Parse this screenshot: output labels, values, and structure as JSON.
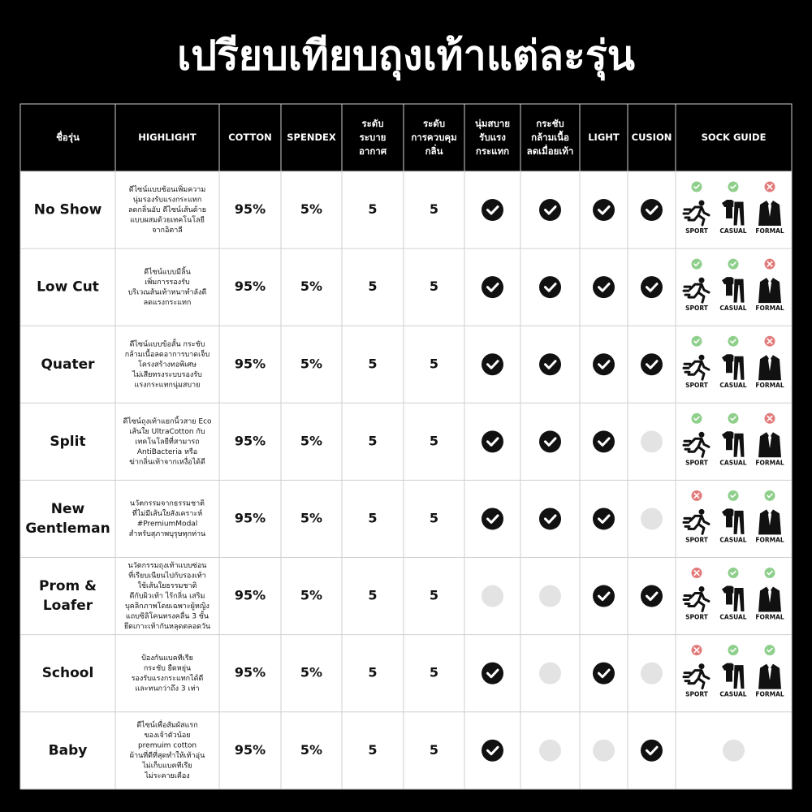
{
  "title": "เปรียบเทียบถุงเท้าแต่ละรุ่น",
  "header": {
    "columns": [
      [
        "ชื่อรุ่น"
      ],
      [
        "HIGHLIGHT"
      ],
      [
        "COTTON"
      ],
      [
        "SPENDEX"
      ],
      [
        "ระดับ",
        "ระบาย",
        "อากาศ"
      ],
      [
        "ระดับ",
        "การควบคุม",
        "กลิ่น"
      ],
      [
        "นุ่มสบาย",
        "รับแรง",
        "กระแทก"
      ],
      [
        "กระชับ",
        "กล้ามเนื้อ",
        "ลดเมื่อยเท้า"
      ],
      [
        "LIGHT"
      ],
      [
        "CUSION"
      ],
      [
        "SOCK GUIDE"
      ]
    ]
  },
  "guide_labels": [
    "SPORT",
    "CASUAL",
    "FORMAL"
  ],
  "rows": [
    {
      "name": [
        "No Show"
      ],
      "highlight": [
        "ดีไซน์แบบซ้อนเพิ่มความ",
        "นุ่มรองรับแรงกระแทก",
        "ลดกลิ่นอับ ดีไซน์เส้นด้าย",
        "แบบผสมด้วยเทคโนโลยี",
        "จากอิตาลี"
      ],
      "cotton": "95%",
      "spendex": "5%",
      "ventilation": 5,
      "odor": 5,
      "features": [
        true,
        true,
        true,
        true
      ],
      "guide": [
        true,
        true,
        false
      ]
    },
    {
      "name": [
        "Low Cut"
      ],
      "highlight": [
        "ดีไซน์แบบมีลิ้น",
        "เพิ่มการรองรับ",
        "บริเวณส้นเท้าหนาทำลังดี",
        "ลดแรงกระแทก"
      ],
      "cotton": "95%",
      "spendex": "5%",
      "ventilation": 5,
      "odor": 5,
      "features": [
        true,
        true,
        true,
        true
      ],
      "guide": [
        true,
        true,
        false
      ]
    },
    {
      "name": [
        "Quater"
      ],
      "highlight": [
        "ดีไซน์แบบข้อสั้น กระชับ",
        "กล้ามเนื้อลดอาการบาดเจ็บ",
        "โครงสร้างทอพิเศษ",
        "ไม่เสียทรงระบบรองรับ",
        "แรงกระแทกนุ่มสบาย"
      ],
      "cotton": "95%",
      "spendex": "5%",
      "ventilation": 5,
      "odor": 5,
      "features": [
        true,
        true,
        true,
        true
      ],
      "guide": [
        true,
        true,
        false
      ]
    },
    {
      "name": [
        "Split"
      ],
      "highlight": [
        "ดีไซน์ถุงเท้าแยกนิ้วสาย Eco",
        "เส้นใย UltraCotton กับ",
        "เทคโนโลยีที่สามารถ",
        "AntiBacteria หรือ",
        "ฆ่ากลิ่นเท้าจากเหงื่อได้ดี"
      ],
      "cotton": "95%",
      "spendex": "5%",
      "ventilation": 5,
      "odor": 5,
      "features": [
        true,
        true,
        true,
        false
      ],
      "guide": [
        true,
        true,
        false
      ]
    },
    {
      "name": [
        "New",
        "Gentleman"
      ],
      "highlight": [
        "นวัตกรรมจากธรรมชาติ",
        "ที่ไม่มีเส้นใยสังเคราะห์",
        "#PremiumModal",
        "สำหรับสุภาพบุรุษทุกท่าน"
      ],
      "cotton": "95%",
      "spendex": "5%",
      "ventilation": 5,
      "odor": 5,
      "features": [
        true,
        true,
        true,
        false
      ],
      "guide": [
        false,
        true,
        true
      ]
    },
    {
      "name": [
        "Prom &",
        "Loafer"
      ],
      "highlight": [
        "นวัตกรรมถุงเท้าแบบซ่อน",
        "ที่เรียบเนียนไปกับรองเท้า",
        "ใช้เส้นใยธรรมชาติ",
        "ดีกับผิวเท้า ไร้กลิ่น เสริม",
        "บุคลิกภาพโดยเฉพาะผู้หญิง",
        "แถบซิลิโคนทรงคลื่น 3 ชั้น",
        "ยึดเกาะเท้ากันหลุดตลอดวัน"
      ],
      "cotton": "95%",
      "spendex": "5%",
      "ventilation": 5,
      "odor": 5,
      "features": [
        false,
        false,
        true,
        true
      ],
      "guide": [
        false,
        true,
        true
      ]
    },
    {
      "name": [
        "School"
      ],
      "highlight": [
        "ป้องกันแบคทีเรีย",
        "กระชับ ยืดหยุ่น",
        "รองรับแรงกระแทกได้ดี",
        "และทนกว่าถึง 3 เท่า"
      ],
      "cotton": "95%",
      "spendex": "5%",
      "ventilation": 5,
      "odor": 5,
      "features": [
        true,
        false,
        true,
        false
      ],
      "guide": [
        false,
        true,
        true
      ]
    },
    {
      "name": [
        "Baby"
      ],
      "highlight": [
        "ดีไซน์เพื่อสัมผัสแรก",
        "ของเจ้าตัวน้อย",
        "premuim cotton",
        "ผ้านที่ดีที่สุดทำให้เท้าอุ่น",
        "ไม่เก็บแบคทีเรีย",
        "ไม่ระคายเคือง"
      ],
      "cotton": "95%",
      "spendex": "5%",
      "ventilation": 5,
      "odor": 5,
      "features": [
        true,
        false,
        false,
        true
      ],
      "guide": null
    }
  ]
}
